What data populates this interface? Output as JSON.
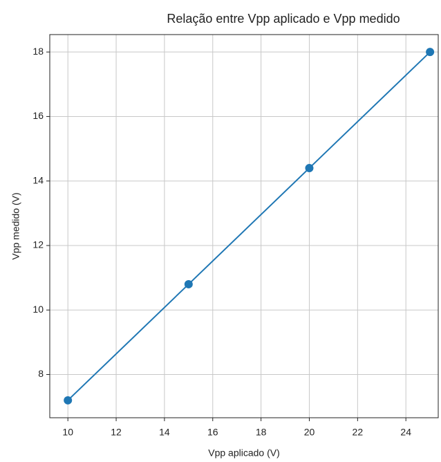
{
  "chart_data": {
    "type": "line",
    "title": "Relação entre Vpp aplicado e Vpp medido",
    "xlabel": "Vpp aplicado (V)",
    "ylabel": "Vpp medido (V)",
    "x": [
      10,
      15,
      20,
      25
    ],
    "series": [
      {
        "color": "#1f77b4",
        "values": [
          7.2,
          10.8,
          14.4,
          18.0
        ]
      }
    ],
    "markers": true,
    "xlim": [
      9.25,
      25.34
    ],
    "ylim": [
      6.66,
      18.54
    ],
    "xticks": [
      10,
      12,
      14,
      16,
      18,
      20,
      22,
      24
    ],
    "yticks": [
      8,
      10,
      12,
      14,
      16,
      18
    ],
    "grid": true
  }
}
